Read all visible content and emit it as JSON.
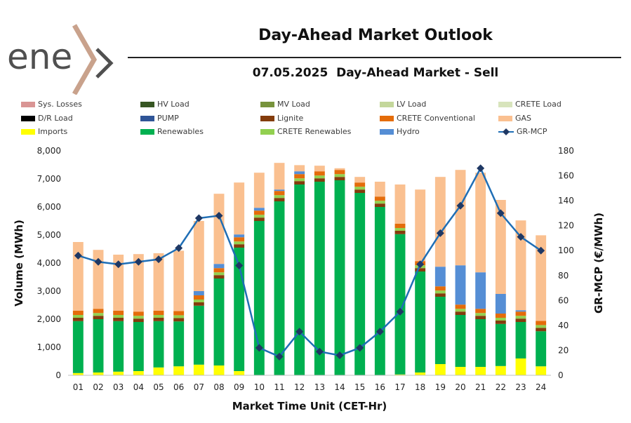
{
  "brand": {
    "logo_text": "ene",
    "logo_accent_color": "#c9a28c",
    "logo_text_color": "#505050"
  },
  "header": {
    "title": "Day-Ahead Market Outlook",
    "subtitle": "07.05.2025  Day-Ahead Market - Sell"
  },
  "chart_data": {
    "type": "bar",
    "stacked": true,
    "title": "07.05.2025  Day-Ahead Market - Sell",
    "xlabel": "Market Time Unit (CET-Hr)",
    "ylabel": "Volume (MWh)",
    "y2label": "GR-MCP (€/MWh)",
    "ylim": [
      0,
      8000
    ],
    "y2lim": [
      0,
      180
    ],
    "yticks": [
      "0",
      "1,000",
      "2,000",
      "3,000",
      "4,000",
      "5,000",
      "6,000",
      "7,000",
      "8,000"
    ],
    "y2ticks": [
      "0",
      "20",
      "40",
      "60",
      "80",
      "100",
      "120",
      "140",
      "160",
      "180"
    ],
    "categories": [
      "01",
      "02",
      "03",
      "04",
      "05",
      "06",
      "07",
      "08",
      "09",
      "10",
      "11",
      "12",
      "13",
      "14",
      "15",
      "16",
      "17",
      "18",
      "19",
      "20",
      "21",
      "22",
      "23",
      "24"
    ],
    "series": [
      {
        "name": "Sys. Losses",
        "color": "#d99594",
        "values": [
          0,
          0,
          0,
          0,
          0,
          0,
          0,
          0,
          0,
          0,
          0,
          0,
          0,
          0,
          0,
          0,
          0,
          0,
          0,
          0,
          0,
          0,
          0,
          0
        ]
      },
      {
        "name": "D/R Load",
        "color": "#000000",
        "values": [
          0,
          0,
          0,
          0,
          0,
          0,
          0,
          0,
          0,
          0,
          0,
          0,
          0,
          0,
          0,
          0,
          0,
          0,
          0,
          0,
          0,
          0,
          0,
          0
        ]
      },
      {
        "name": "Imports",
        "color": "#ffff00",
        "values": [
          80,
          100,
          130,
          150,
          280,
          320,
          380,
          350,
          150,
          0,
          0,
          0,
          0,
          0,
          0,
          0,
          30,
          100,
          400,
          300,
          300,
          330,
          600,
          320
        ]
      },
      {
        "name": "HV Load",
        "color": "#375623",
        "values": [
          0,
          0,
          0,
          0,
          0,
          0,
          0,
          0,
          0,
          0,
          0,
          0,
          0,
          0,
          0,
          0,
          0,
          0,
          0,
          0,
          0,
          0,
          0,
          0
        ]
      },
      {
        "name": "PUMP",
        "color": "#2f5597",
        "values": [
          0,
          0,
          0,
          0,
          0,
          0,
          0,
          0,
          0,
          0,
          0,
          0,
          0,
          0,
          0,
          0,
          0,
          0,
          0,
          0,
          0,
          0,
          0,
          0
        ]
      },
      {
        "name": "Renewables",
        "color": "#00b050",
        "values": [
          1850,
          1900,
          1800,
          1750,
          1650,
          1600,
          2100,
          3100,
          4400,
          5500,
          6200,
          6800,
          6900,
          6950,
          6500,
          6000,
          5000,
          3600,
          2400,
          1850,
          1700,
          1500,
          1300,
          1250
        ]
      },
      {
        "name": "MV Load",
        "color": "#77933c",
        "values": [
          0,
          0,
          0,
          0,
          0,
          0,
          0,
          0,
          0,
          0,
          0,
          0,
          0,
          0,
          0,
          0,
          0,
          0,
          0,
          0,
          0,
          0,
          0,
          0
        ]
      },
      {
        "name": "Lignite",
        "color": "#843c0c",
        "values": [
          120,
          120,
          120,
          120,
          120,
          120,
          120,
          120,
          120,
          120,
          120,
          120,
          120,
          120,
          120,
          120,
          120,
          120,
          120,
          120,
          120,
          120,
          120,
          120
        ]
      },
      {
        "name": "CRETE Renewables",
        "color": "#92d050",
        "values": [
          100,
          100,
          100,
          100,
          100,
          100,
          100,
          100,
          100,
          100,
          100,
          100,
          100,
          100,
          100,
          100,
          100,
          100,
          100,
          100,
          100,
          100,
          100,
          100
        ]
      },
      {
        "name": "LV Load",
        "color": "#c4d79b",
        "values": [
          0,
          0,
          0,
          0,
          0,
          0,
          0,
          0,
          0,
          0,
          0,
          0,
          0,
          0,
          0,
          0,
          0,
          0,
          0,
          0,
          0,
          0,
          0,
          0
        ]
      },
      {
        "name": "CRETE Conventional",
        "color": "#e46c0a",
        "values": [
          150,
          150,
          150,
          150,
          150,
          150,
          150,
          150,
          150,
          150,
          150,
          150,
          150,
          150,
          150,
          150,
          150,
          150,
          150,
          150,
          150,
          150,
          150,
          150
        ]
      },
      {
        "name": "Hydro",
        "color": "#558ed5",
        "values": [
          0,
          0,
          0,
          0,
          0,
          0,
          150,
          150,
          100,
          100,
          50,
          100,
          0,
          0,
          0,
          0,
          0,
          0,
          700,
          1400,
          1300,
          700,
          50,
          0
        ]
      },
      {
        "name": "CRETE Load",
        "color": "#d8e4bc",
        "values": [
          0,
          0,
          0,
          0,
          0,
          0,
          0,
          0,
          0,
          0,
          0,
          0,
          0,
          0,
          0,
          0,
          0,
          0,
          0,
          0,
          0,
          0,
          0,
          0
        ]
      },
      {
        "name": "GAS",
        "color": "#fac090",
        "values": [
          2450,
          2100,
          2000,
          2050,
          2050,
          2150,
          2500,
          2500,
          1850,
          1250,
          950,
          220,
          200,
          60,
          200,
          530,
          1400,
          2550,
          3200,
          3400,
          3550,
          3350,
          3200,
          3050
        ]
      }
    ],
    "line": {
      "name": "GR-MCP",
      "color": "#1f6eb5",
      "values": [
        96,
        91,
        89,
        91,
        93,
        102,
        126,
        128,
        88,
        22,
        15,
        35,
        19,
        16,
        22,
        35,
        51,
        89,
        114,
        136,
        166,
        130,
        111,
        100
      ]
    }
  }
}
